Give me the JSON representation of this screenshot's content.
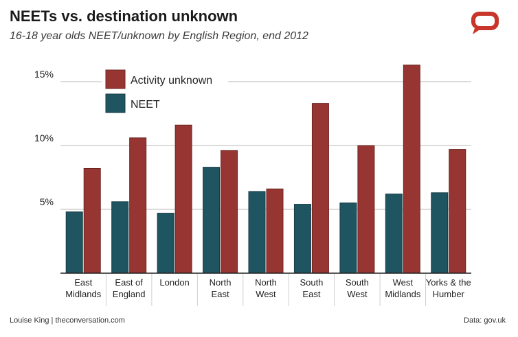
{
  "header": {
    "title": "NEETs vs. destination unknown",
    "subtitle": "16-18 year olds NEET/unknown by English Region, end 2012"
  },
  "footer": {
    "credit": "Louise King | theconversation.com",
    "source": "Data: gov.uk"
  },
  "colors": {
    "neet": "#1f5560",
    "activity_unknown": "#963531",
    "gridline": "#b8b8b8",
    "axis": "#222222",
    "logo": "#c8362b"
  },
  "logo_icon": "speech-bubble-icon",
  "chart_data": {
    "type": "bar",
    "title": "NEETs vs. destination unknown",
    "subtitle": "16-18 year olds NEET/unknown by English Region, end 2012",
    "categories": [
      [
        "East",
        "Midlands"
      ],
      [
        "East of",
        "England"
      ],
      [
        "London"
      ],
      [
        "North",
        "East"
      ],
      [
        "North",
        "West"
      ],
      [
        "South",
        "East"
      ],
      [
        "South",
        "West"
      ],
      [
        "West",
        "Midlands"
      ],
      [
        "Yorks & the",
        "Humber"
      ]
    ],
    "series": [
      {
        "name": "NEET",
        "values": [
          4.8,
          5.6,
          4.7,
          8.3,
          6.4,
          5.4,
          5.5,
          6.2,
          6.3
        ]
      },
      {
        "name": "Activity unknown",
        "values": [
          8.2,
          10.6,
          11.6,
          9.6,
          6.6,
          13.3,
          10.0,
          16.3,
          9.7
        ]
      }
    ],
    "yticks": [
      {
        "value": 5,
        "label": "5%"
      },
      {
        "value": 10,
        "label": "10%"
      },
      {
        "value": 15,
        "label": "15%"
      }
    ],
    "ylim": [
      0,
      16.5
    ],
    "xlabel": "",
    "ylabel": "",
    "grid": true,
    "legend": {
      "position": "top-left",
      "entries": [
        "Activity unknown",
        "NEET"
      ]
    }
  }
}
